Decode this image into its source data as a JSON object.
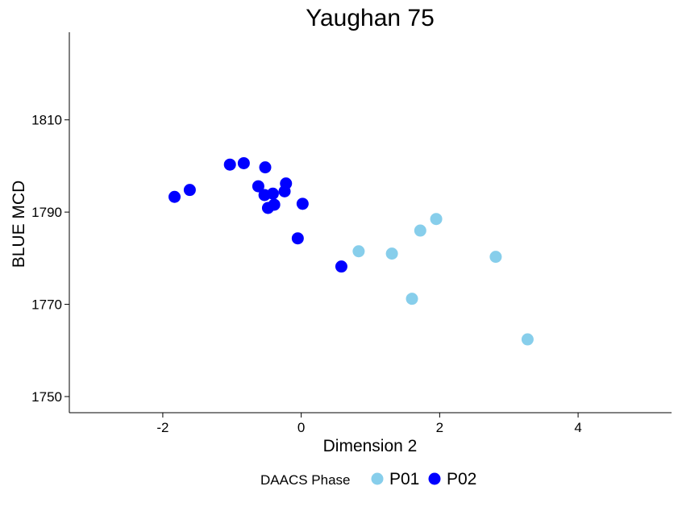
{
  "chart_data": {
    "type": "scatter",
    "title": "Yaughan 75",
    "xlabel": "Dimension 2",
    "ylabel": "BLUE MCD",
    "xlim": [
      -3.35,
      5.35
    ],
    "ylim": [
      1746.5,
      1829
    ],
    "x_ticks": [
      -2,
      0,
      2,
      4
    ],
    "y_ticks": [
      1750,
      1770,
      1790,
      1810
    ],
    "grid": false,
    "legend": {
      "title": "DAACS Phase",
      "position": "bottom"
    },
    "series": [
      {
        "name": "P01",
        "color": "#87CEEB",
        "points": [
          {
            "x": 0.83,
            "y": 1781.5
          },
          {
            "x": 1.31,
            "y": 1781.0
          },
          {
            "x": 1.72,
            "y": 1786.0
          },
          {
            "x": 1.95,
            "y": 1788.5
          },
          {
            "x": 1.6,
            "y": 1771.2
          },
          {
            "x": 2.81,
            "y": 1780.3
          },
          {
            "x": 3.27,
            "y": 1762.4
          }
        ]
      },
      {
        "name": "P02",
        "color": "#0000FF",
        "points": [
          {
            "x": -1.83,
            "y": 1793.3
          },
          {
            "x": -1.61,
            "y": 1794.8
          },
          {
            "x": -1.03,
            "y": 1800.3
          },
          {
            "x": -0.83,
            "y": 1800.6
          },
          {
            "x": -0.52,
            "y": 1799.7
          },
          {
            "x": -0.62,
            "y": 1795.6
          },
          {
            "x": -0.53,
            "y": 1793.7
          },
          {
            "x": -0.41,
            "y": 1794.0
          },
          {
            "x": -0.24,
            "y": 1794.5
          },
          {
            "x": -0.22,
            "y": 1796.2
          },
          {
            "x": -0.48,
            "y": 1790.9
          },
          {
            "x": -0.39,
            "y": 1791.6
          },
          {
            "x": 0.02,
            "y": 1791.8
          },
          {
            "x": -0.05,
            "y": 1784.3
          },
          {
            "x": 0.58,
            "y": 1778.2
          }
        ]
      }
    ]
  }
}
